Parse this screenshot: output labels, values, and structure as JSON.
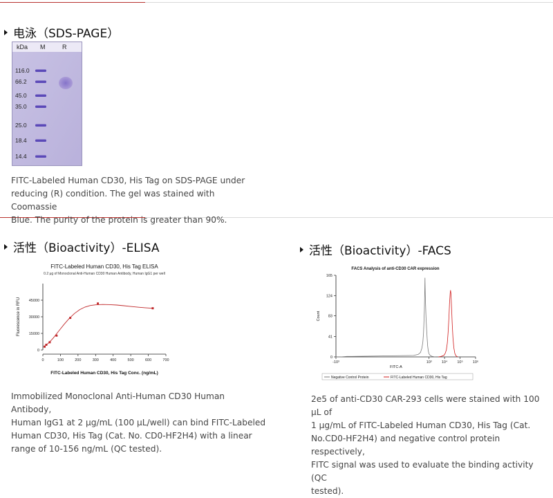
{
  "sections": {
    "sds": {
      "title": "电泳（SDS-PAGE）",
      "gel": {
        "col_kda": "kDa",
        "col_m": "M",
        "col_r": "R",
        "markers": [
          "116.0",
          "66.2",
          "45.0",
          "35.0",
          "25.0",
          "18.4",
          "14.4"
        ]
      },
      "caption": [
        "FITC-Labeled Human CD30, His Tag on SDS-PAGE under",
        "reducing (R) condition. The gel was stained with Coomassie",
        "Blue. The purity of the protein is greater than 90%."
      ]
    },
    "elisa": {
      "title": "活性（Bioactivity）-ELISA",
      "caption": [
        "Immobilized Monoclonal Anti-Human CD30 Human Antibody,",
        "Human IgG1 at 2 μg/mL (100 μL/well) can bind FITC-Labeled",
        "Human CD30, His Tag (Cat. No. CD0-HF2H4) with a linear",
        "range of 10-156 ng/mL (QC tested)."
      ]
    },
    "facs": {
      "title": "活性（Bioactivity）-FACS",
      "caption": [
        "2e5 of anti-CD30 CAR-293 cells were stained with 100 μL of",
        "1 μg/mL of FITC-Labeled Human CD30, His Tag (Cat.",
        "No.CD0-HF2H4) and negative control protein respectively,",
        "FITC signal was used to evaluate the binding activity (QC",
        "tested)."
      ]
    }
  },
  "chart_data": [
    {
      "type": "scatter",
      "title": "FITC-Labeled Human CD30, His Tag ELISA",
      "subtitle": "0.2 μg of Monoclonal Anti-Human CD30 Human Antibody, Human IgG1 per well",
      "xlabel": "FITC-Labeled Human CD30, His Tag Conc. (ng/mL)",
      "ylabel": "Fluorescence in RFU",
      "xlim": [
        0,
        700
      ],
      "ylim": [
        0,
        60000
      ],
      "x_ticks": [
        "0",
        "100",
        "200",
        "300",
        "400",
        "500",
        "600",
        "700"
      ],
      "y_ticks": [
        "0",
        "15000",
        "30000",
        "45000"
      ],
      "y_tick_values": [
        0,
        15000,
        30000,
        45000
      ],
      "series": [
        {
          "x": [
            9.8,
            19.5,
            39,
            78,
            156,
            313,
            625
          ],
          "y": [
            3000,
            4700,
            7000,
            13000,
            29000,
            42000,
            37700
          ],
          "fit": [
            [
              5,
              2500
            ],
            [
              20,
              4500
            ],
            [
              40,
              7500
            ],
            [
              60,
              11000
            ],
            [
              80,
              15000
            ],
            [
              100,
              19000
            ],
            [
              120,
              23000
            ],
            [
              150,
              28500
            ],
            [
              180,
              33000
            ],
            [
              210,
              36500
            ],
            [
              240,
              38800
            ],
            [
              270,
              40200
            ],
            [
              300,
              40800
            ],
            [
              340,
              41100
            ],
            [
              380,
              41000
            ],
            [
              420,
              40600
            ],
            [
              460,
              40000
            ],
            [
              500,
              39300
            ],
            [
              540,
              38700
            ],
            [
              580,
              38200
            ],
            [
              625,
              37700
            ]
          ]
        }
      ],
      "colors": {
        "marker": "#c0282a",
        "fit": "#c0282a"
      }
    },
    {
      "type": "line",
      "title": "FACS Analysis of anti-CD30 CAR expression",
      "xlabel": "FITC-A",
      "ylabel": "Count",
      "x_scale": "log",
      "xlim": [
        -1000,
        1000000
      ],
      "ylim": [
        0,
        165
      ],
      "x_ticks": [
        "-10³",
        "10³",
        "10⁴",
        "10⁵",
        "10⁶"
      ],
      "x_tick_values": [
        -1000,
        1000,
        10000,
        100000,
        1000000
      ],
      "y_ticks": [
        "0",
        "41",
        "83",
        "124",
        "165"
      ],
      "y_tick_values": [
        0,
        41,
        83,
        124,
        165
      ],
      "series": [
        {
          "name": "Negative Control Protein",
          "color": "#7a7a7a",
          "points": [
            [
              -1000,
              0
            ],
            [
              -500,
              0
            ],
            [
              -200,
              1
            ],
            [
              -100,
              1
            ],
            [
              0,
              2
            ],
            [
              100,
              3
            ],
            [
              200,
              5
            ],
            [
              280,
              9
            ],
            [
              350,
              18
            ],
            [
              400,
              30
            ],
            [
              440,
              48
            ],
            [
              470,
              70
            ],
            [
              500,
              95
            ],
            [
              520,
              120
            ],
            [
              535,
              145
            ],
            [
              545,
              160
            ],
            [
              555,
              150
            ],
            [
              570,
              128
            ],
            [
              600,
              105
            ],
            [
              640,
              80
            ],
            [
              700,
              55
            ],
            [
              760,
              36
            ],
            [
              820,
              22
            ],
            [
              900,
              12
            ],
            [
              1000,
              6
            ],
            [
              1200,
              3
            ],
            [
              1600,
              1
            ],
            [
              2500,
              0
            ]
          ]
        },
        {
          "name": "FITC-Labeled Human CD30, His Tag",
          "color": "#d01c1c",
          "points": [
            [
              4000,
              0
            ],
            [
              6000,
              1
            ],
            [
              9000,
              3
            ],
            [
              11000,
              7
            ],
            [
              13000,
              14
            ],
            [
              15000,
              28
            ],
            [
              17000,
              50
            ],
            [
              19000,
              78
            ],
            [
              21000,
              108
            ],
            [
              23000,
              128
            ],
            [
              24500,
              135
            ],
            [
              26000,
              128
            ],
            [
              28000,
              105
            ],
            [
              31000,
              70
            ],
            [
              35000,
              38
            ],
            [
              40000,
              18
            ],
            [
              46000,
              7
            ],
            [
              55000,
              2
            ],
            [
              70000,
              0
            ]
          ]
        }
      ]
    }
  ]
}
